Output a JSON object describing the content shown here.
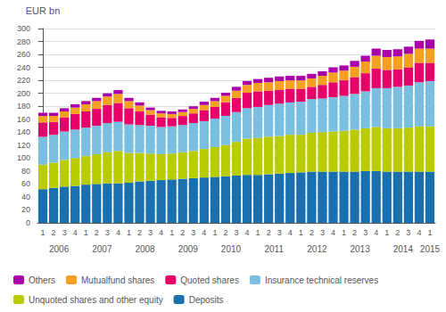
{
  "chart_data": {
    "type": "bar",
    "stacked": true,
    "grid": true,
    "legend": "bottom",
    "ylabel": "EUR bn",
    "categories": [
      "1",
      "2",
      "3",
      "4",
      "1",
      "2",
      "3",
      "4",
      "1",
      "2",
      "3",
      "4",
      "1",
      "2",
      "3",
      "4",
      "1",
      "2",
      "3",
      "4",
      "1",
      "2",
      "3",
      "4",
      "1",
      "2",
      "3",
      "4",
      "1",
      "2",
      "3",
      "4",
      "1",
      "2",
      "3",
      "4",
      "1"
    ],
    "annotations": [
      "2006",
      "2007",
      "2008",
      "2009",
      "2010",
      "2011",
      "2012",
      "2013",
      "2014",
      "2015"
    ],
    "ylim": [
      0,
      300
    ],
    "yticks": [
      0,
      20,
      40,
      60,
      80,
      100,
      120,
      140,
      160,
      180,
      200,
      220,
      240,
      260,
      280,
      300
    ],
    "series": [
      {
        "name": "Deposits",
        "color": "#1a6faf",
        "values": [
          52,
          54,
          56,
          57,
          59,
          60,
          61,
          61,
          62,
          64,
          65,
          66,
          67,
          68,
          69,
          70,
          71,
          72,
          73,
          74,
          74,
          75,
          76,
          77,
          78,
          79,
          79,
          79,
          79,
          79,
          80,
          80,
          79,
          79,
          79,
          79,
          79
        ]
      },
      {
        "name": "Unquoted shares and other equity",
        "color": "#b8cc00",
        "values": [
          38,
          39,
          41,
          43,
          44,
          46,
          48,
          50,
          46,
          44,
          42,
          40,
          40,
          41,
          42,
          44,
          46,
          48,
          52,
          56,
          57,
          58,
          58,
          59,
          58,
          60,
          61,
          62,
          63,
          65,
          66,
          68,
          67,
          67,
          68,
          70,
          70
        ]
      },
      {
        "name": "Insurance technical reserves",
        "color": "#7bbfe0",
        "values": [
          43,
          43,
          44,
          44,
          44,
          44,
          45,
          45,
          44,
          43,
          43,
          42,
          42,
          42,
          43,
          43,
          44,
          45,
          46,
          47,
          48,
          49,
          50,
          50,
          51,
          52,
          52,
          53,
          54,
          55,
          57,
          60,
          62,
          64,
          65,
          68,
          70
        ]
      },
      {
        "name": "Quoted shares",
        "color": "#e8006a",
        "values": [
          22,
          20,
          22,
          24,
          25,
          26,
          28,
          29,
          25,
          21,
          17,
          15,
          13,
          14,
          15,
          17,
          18,
          21,
          22,
          24,
          24,
          22,
          21,
          21,
          20,
          19,
          21,
          23,
          24,
          26,
          28,
          30,
          28,
          27,
          28,
          30,
          28
        ]
      },
      {
        "name": "Mutualfund shares",
        "color": "#f5a020",
        "values": [
          10,
          9,
          9,
          10,
          11,
          12,
          13,
          14,
          11,
          9,
          7,
          6,
          6,
          6,
          7,
          8,
          9,
          10,
          11,
          12,
          13,
          13,
          14,
          13,
          13,
          13,
          14,
          15,
          15,
          16,
          18,
          20,
          20,
          20,
          21,
          22,
          22
        ]
      },
      {
        "name": "Others",
        "color": "#aa00aa",
        "values": [
          5,
          5,
          5,
          5,
          5,
          5,
          5,
          6,
          5,
          5,
          4,
          4,
          4,
          4,
          4,
          5,
          5,
          5,
          6,
          6,
          6,
          7,
          7,
          7,
          7,
          7,
          7,
          8,
          8,
          9,
          9,
          11,
          11,
          11,
          11,
          12,
          14
        ]
      }
    ]
  }
}
